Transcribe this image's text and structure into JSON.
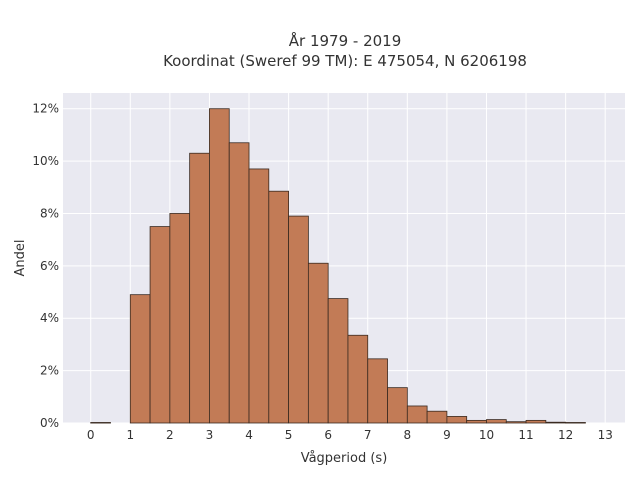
{
  "chart_data": {
    "type": "bar",
    "title_line1": "År 1979 - 2019",
    "title_line2": "Koordinat (Sweref 99 TM): E 475054, N 6206198",
    "xlabel": "Vågperiod (s)",
    "ylabel": "Andel",
    "xlim": [
      -0.7,
      13.5
    ],
    "ylim": [
      0,
      12.6
    ],
    "x_ticks": [
      0,
      1,
      2,
      3,
      4,
      5,
      6,
      7,
      8,
      9,
      10,
      11,
      12,
      13
    ],
    "y_ticks": [
      0,
      2,
      4,
      6,
      8,
      10,
      12
    ],
    "y_tick_labels": [
      "0%",
      "2%",
      "4%",
      "6%",
      "8%",
      "10%",
      "12%"
    ],
    "bin_width": 0.5,
    "bins_start": [
      0,
      0.5,
      1,
      1.5,
      2,
      2.5,
      3,
      3.5,
      4,
      4.5,
      5,
      5.5,
      6,
      6.5,
      7,
      7.5,
      8,
      8.5,
      9,
      9.5,
      10,
      10.5,
      11,
      11.5,
      12,
      12.5
    ],
    "values": [
      0.02,
      0,
      4.9,
      7.5,
      8.0,
      10.3,
      12.0,
      10.7,
      9.7,
      8.85,
      7.9,
      6.1,
      4.75,
      3.35,
      2.45,
      1.35,
      0.65,
      0.45,
      0.25,
      0.1,
      0.13,
      0.05,
      0.1,
      0.03,
      0.02,
      0
    ],
    "bar_color": "#c27b56",
    "bar_edge_color": "#3a2a20",
    "plot_background": "#e9e9f1",
    "grid": true,
    "grid_color": "#ffffff"
  }
}
